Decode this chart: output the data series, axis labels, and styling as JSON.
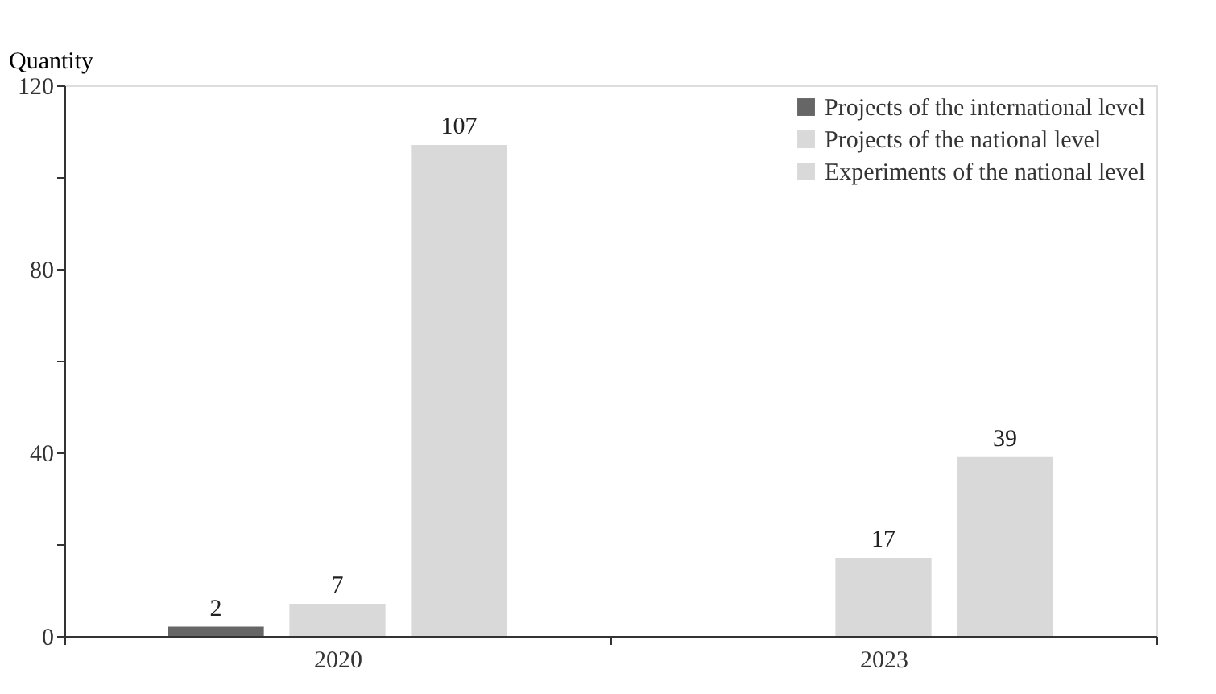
{
  "chart_data": {
    "type": "bar",
    "ylabel": "Quantity",
    "categories": [
      "2020",
      "2023"
    ],
    "series": [
      {
        "name": "Projects of the international level",
        "color": "#666666",
        "values": [
          2,
          null
        ]
      },
      {
        "name": "Projects of the national level",
        "color": "#d9d9d9",
        "values": [
          7,
          17
        ]
      },
      {
        "name": "Experiments of the national level",
        "color": "#d9d9d9",
        "values": [
          107,
          39
        ]
      }
    ],
    "ylim": [
      0,
      120
    ],
    "yticks": [
      0,
      {
        "value": 20,
        "label": null
      },
      40,
      {
        "value": 60,
        "label": null
      },
      80,
      {
        "value": 100,
        "label": null
      },
      120
    ],
    "data_labels": true,
    "legend": "top right",
    "grid": false
  }
}
